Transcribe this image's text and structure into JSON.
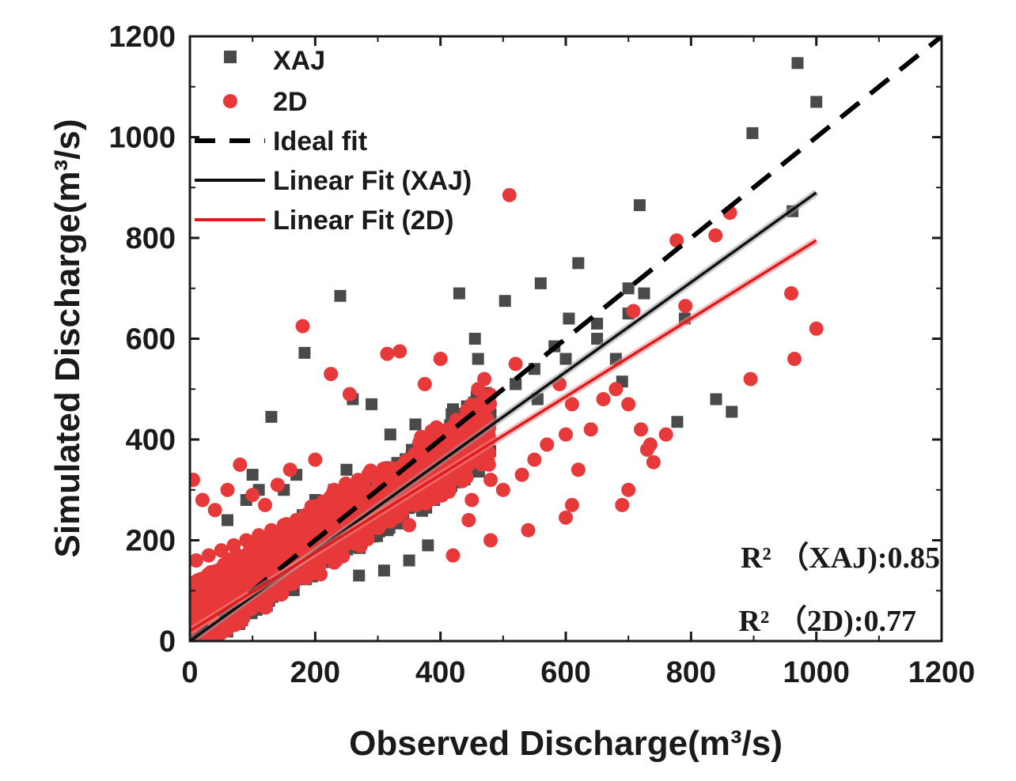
{
  "chart_data": {
    "type": "scatter",
    "title": "",
    "xlabel": "Observed Discharge(m³/s)",
    "ylabel": "Simulated Discharge(m³/s)",
    "xlim": [
      0,
      1200
    ],
    "ylim": [
      0,
      1200
    ],
    "xticks": [
      "0",
      "200",
      "400",
      "600",
      "800",
      "1000",
      "1200"
    ],
    "yticks": [
      "0",
      "200",
      "400",
      "600",
      "800",
      "1000",
      "1200"
    ],
    "colors": {
      "xaj": "#4a4a4a",
      "twod": "#e8393a",
      "fit_xaj": "#111111",
      "fit_2d": "#e01b1b",
      "ideal": "#000000"
    },
    "legend": {
      "position": "top-left",
      "entries": [
        {
          "name": "XAJ",
          "kind": "square",
          "color": "#4a4a4a"
        },
        {
          "name": "2D",
          "kind": "circle",
          "color": "#e8393a"
        },
        {
          "name": "Ideal fit",
          "kind": "dashed-line",
          "color": "#000000"
        },
        {
          "name": "Linear Fit (XAJ)",
          "kind": "line",
          "color": "#111111"
        },
        {
          "name": "Linear Fit (2D)",
          "kind": "line",
          "color": "#e01b1b"
        }
      ]
    },
    "series": [
      {
        "name": "XAJ",
        "marker": "square",
        "x": [
          970,
          1000,
          898,
          718,
          962,
          240,
          183,
          503,
          620,
          430,
          700,
          725,
          560,
          605,
          582,
          650,
          680,
          690,
          455,
          460,
          260,
          290,
          320,
          360,
          420,
          470,
          520,
          555,
          600,
          650,
          700,
          778,
          840,
          865,
          790,
          550,
          520,
          480,
          440,
          400,
          130,
          100,
          110,
          90,
          60,
          150,
          170,
          200,
          230,
          250,
          270,
          300,
          330,
          360,
          390,
          410,
          430,
          270,
          310,
          350,
          380,
          180,
          210,
          140,
          80,
          40,
          20,
          60,
          120,
          160,
          220,
          280,
          340
        ],
        "y": [
          1147,
          1070,
          1008,
          865,
          853,
          685,
          572,
          675,
          750,
          690,
          700,
          690,
          710,
          640,
          585,
          630,
          560,
          515,
          600,
          560,
          480,
          470,
          410,
          430,
          460,
          430,
          510,
          480,
          560,
          600,
          650,
          435,
          480,
          455,
          640,
          540,
          510,
          450,
          400,
          380,
          445,
          330,
          300,
          280,
          240,
          300,
          330,
          280,
          300,
          340,
          290,
          330,
          270,
          310,
          280,
          300,
          350,
          130,
          140,
          160,
          190,
          250,
          210,
          160,
          100,
          50,
          20,
          40,
          80,
          120,
          200,
          210,
          270
        ]
      },
      {
        "name": "2D",
        "marker": "circle",
        "x": [
          510,
          862,
          839,
          777,
          791,
          708,
          960,
          1000,
          965,
          895,
          180,
          315,
          335,
          225,
          255,
          375,
          400,
          470,
          460,
          520,
          590,
          610,
          660,
          700,
          720,
          735,
          680,
          640,
          600,
          550,
          530,
          500,
          480,
          450,
          420,
          380,
          360,
          330,
          300,
          270,
          240,
          210,
          190,
          170,
          150,
          130,
          110,
          90,
          70,
          50,
          30,
          10,
          5,
          20,
          40,
          60,
          80,
          100,
          120,
          140,
          160,
          200,
          230,
          260,
          290,
          320,
          350,
          600,
          620,
          700,
          740,
          690,
          760,
          730,
          480,
          420,
          540,
          610,
          570,
          445
        ],
        "y": [
          885,
          850,
          805,
          795,
          665,
          655,
          690,
          620,
          560,
          520,
          625,
          570,
          575,
          530,
          490,
          510,
          560,
          520,
          500,
          550,
          510,
          470,
          480,
          470,
          420,
          390,
          500,
          420,
          410,
          360,
          330,
          300,
          320,
          280,
          400,
          370,
          350,
          330,
          300,
          290,
          270,
          260,
          250,
          240,
          230,
          220,
          210,
          200,
          190,
          180,
          170,
          160,
          320,
          280,
          260,
          300,
          350,
          290,
          270,
          310,
          340,
          360,
          300,
          280,
          260,
          240,
          230,
          245,
          340,
          300,
          355,
          270,
          410,
          380,
          200,
          170,
          220,
          270,
          390,
          240
        ]
      }
    ],
    "ideal_fit": {
      "from": [
        0,
        0
      ],
      "to": [
        1200,
        1200
      ]
    },
    "linear_fits": [
      {
        "name": "Linear Fit (XAJ)",
        "from": [
          0,
          0
        ],
        "to": [
          1000,
          890
        ]
      },
      {
        "name": "Linear Fit (2D)",
        "from": [
          0,
          20
        ],
        "to": [
          1000,
          795
        ]
      }
    ],
    "annotations": [
      {
        "label": "R² （XAJ):0.85"
      },
      {
        "label": "R² （2D):0.77"
      }
    ]
  }
}
